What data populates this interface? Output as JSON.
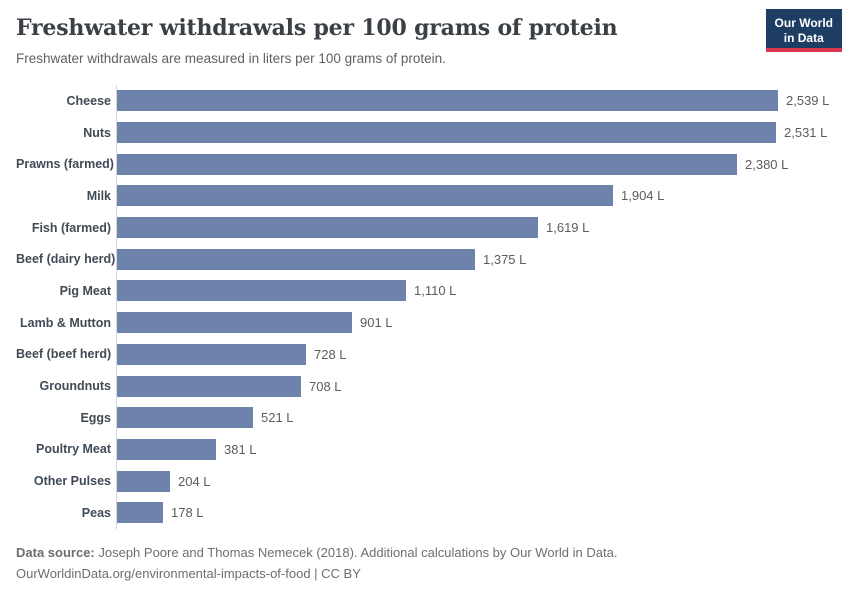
{
  "header": {
    "title": "Freshwater withdrawals per 100 grams of protein",
    "subtitle": "Freshwater withdrawals are measured in liters per 100 grams of protein.",
    "logo": {
      "line1": "Our World",
      "line2": "in Data"
    }
  },
  "chart_data": {
    "type": "bar",
    "orientation": "horizontal",
    "title": "Freshwater withdrawals per 100 grams of protein",
    "xlabel": "",
    "ylabel": "",
    "unit": "liters per 100 grams of protein",
    "grid": false,
    "legend_position": "none",
    "xlim": [
      0,
      2700
    ],
    "categories": [
      "Cheese",
      "Nuts",
      "Prawns (farmed)",
      "Milk",
      "Fish (farmed)",
      "Beef (dairy herd)",
      "Pig Meat",
      "Lamb & Mutton",
      "Beef (beef herd)",
      "Groundnuts",
      "Eggs",
      "Poultry Meat",
      "Other Pulses",
      "Peas"
    ],
    "values": [
      2539,
      2531,
      2380,
      1904,
      1619,
      1375,
      1110,
      901,
      728,
      708,
      521,
      381,
      204,
      178
    ],
    "value_labels": [
      "2,539 L",
      "2,531 L",
      "2,380 L",
      "1,904 L",
      "1,619 L",
      "1,375 L",
      "1,110 L",
      "901 L",
      "728 L",
      "708 L",
      "521 L",
      "381 L",
      "204 L",
      "178 L"
    ],
    "bar_color": "#6d83ac"
  },
  "footer": {
    "line1_bold": "Data source:",
    "line1_rest": " Joseph Poore and Thomas Nemecek (2018). Additional calculations by Our World in Data.",
    "line2_link": "OurWorldinData.org/environmental-impacts-of-food",
    "line2_suffix": " | CC BY"
  },
  "colors": {
    "bar": "#6d83ac",
    "axis_line": "#d7d7d7",
    "logo_bg": "#1d3d63",
    "logo_red": "#dc354e",
    "title_text": "#3a4045",
    "subtitle_text": "#616161"
  }
}
